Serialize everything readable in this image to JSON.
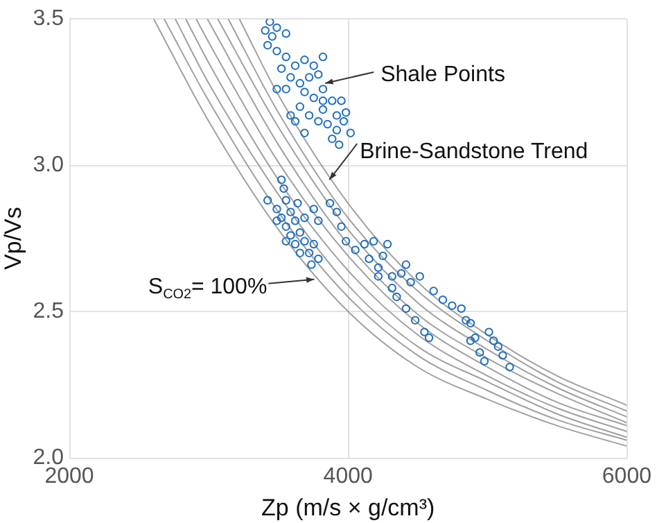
{
  "chart_data": {
    "type": "scatter",
    "xlabel": "Zp (m/s × g/cm³)",
    "ylabel": "Vp/Vs",
    "xlim": [
      2000,
      6000
    ],
    "xticks": [
      2000,
      4000,
      6000
    ],
    "ylim": [
      2.0,
      3.5
    ],
    "yticks": [
      {
        "value": 2.0,
        "label": "2.0"
      },
      {
        "value": 2.5,
        "label": "2.5"
      },
      {
        "value": 3.0,
        "label": "3.0"
      },
      {
        "value": 3.5,
        "label": "3.5"
      }
    ],
    "grid": true,
    "legend": false,
    "marker": "circle",
    "annotations": [
      {
        "text": "Shale Points",
        "x": 3836,
        "y": 3.28
      },
      {
        "text": "Brine-Sandstone Trend",
        "x": 3866,
        "y": 2.95
      },
      {
        "text": "S$_{CO2}$= 100%",
        "x": 3757,
        "y": 2.61
      }
    ],
    "series": [
      {
        "type": "line",
        "marker": "none",
        "color": "#a0a0a0",
        "x": [
          2605,
          3000,
          3500,
          4000,
          4500,
          5000,
          5500,
          6000
        ],
        "values": [
          3.5,
          3.15,
          2.78,
          2.5,
          2.31,
          2.2,
          2.11,
          2.04
        ]
      },
      {
        "type": "line",
        "marker": "none",
        "color": "#a0a0a0",
        "x": [
          2680,
          3000,
          3500,
          4000,
          4500,
          5000,
          5500,
          6000
        ],
        "values": [
          3.5,
          3.22,
          2.84,
          2.55,
          2.35,
          2.23,
          2.13,
          2.06
        ]
      },
      {
        "type": "line",
        "marker": "none",
        "color": "#a0a0a0",
        "x": [
          2760,
          3000,
          3500,
          4000,
          4500,
          5000,
          5500,
          6000
        ],
        "values": [
          3.5,
          3.28,
          2.9,
          2.59,
          2.38,
          2.26,
          2.15,
          2.07
        ]
      },
      {
        "type": "line",
        "marker": "none",
        "color": "#a0a0a0",
        "x": [
          2835,
          3000,
          3500,
          4000,
          4500,
          5000,
          5500,
          6000
        ],
        "values": [
          3.5,
          3.35,
          2.95,
          2.64,
          2.42,
          2.28,
          2.17,
          2.09
        ]
      },
      {
        "type": "line",
        "marker": "none",
        "color": "#a0a0a0",
        "x": [
          2910,
          3000,
          3500,
          4000,
          4500,
          5000,
          5500,
          6000
        ],
        "values": [
          3.5,
          3.42,
          3.01,
          2.69,
          2.46,
          2.31,
          2.19,
          2.11
        ]
      },
      {
        "type": "line",
        "marker": "none",
        "color": "#a0a0a0",
        "x": [
          2990,
          3500,
          4000,
          4500,
          5000,
          5500,
          6000
        ],
        "values": [
          3.5,
          3.07,
          2.73,
          2.49,
          2.34,
          2.22,
          2.12
        ]
      },
      {
        "type": "line",
        "marker": "none",
        "color": "#a0a0a0",
        "x": [
          3065,
          3500,
          4000,
          4500,
          5000,
          5500,
          6000
        ],
        "values": [
          3.5,
          3.13,
          2.78,
          2.53,
          2.37,
          2.24,
          2.14
        ]
      },
      {
        "type": "line",
        "marker": "none",
        "color": "#a0a0a0",
        "x": [
          3140,
          3500,
          4000,
          4500,
          5000,
          5500,
          6000
        ],
        "values": [
          3.5,
          3.18,
          2.82,
          2.57,
          2.4,
          2.26,
          2.16
        ]
      },
      {
        "type": "line",
        "marker": "none",
        "color": "#a0a0a0",
        "x": [
          3220,
          3500,
          4000,
          4500,
          5000,
          5500,
          6000
        ],
        "values": [
          3.5,
          3.24,
          2.87,
          2.6,
          2.42,
          2.28,
          2.18
        ]
      },
      {
        "type": "scatter",
        "color": "#1f6fbf",
        "x": [
          3439,
          3406,
          3456,
          3489,
          3555,
          3423,
          3489,
          3555,
          3621,
          3688,
          3754,
          3522,
          3588,
          3655,
          3721,
          3787,
          3820,
          3688,
          3754,
          3820,
          3886,
          3952,
          3555,
          3655,
          3820,
          3919,
          3985,
          3721,
          3787,
          3853,
          3919,
          4018,
          3621,
          3688,
          3886,
          3936,
          3820,
          3489,
          3588,
          3969,
          3423,
          3489,
          3522,
          3539,
          3555,
          3588,
          3522,
          3555,
          3621,
          3688,
          3754,
          3787,
          3655,
          3588,
          3688,
          3621,
          3754,
          3721,
          3787,
          3737,
          3655,
          3555,
          3489,
          3638,
          3870,
          3919,
          3952,
          3985,
          4052,
          4118,
          4184,
          4151,
          4250,
          4283,
          4217,
          4316,
          4382,
          4416,
          4349,
          4416,
          4482,
          4548,
          4581,
          4449,
          4515,
          4614,
          4680,
          4747,
          4813,
          4846,
          4879,
          4912,
          4945,
          4978,
          5011,
          5044,
          5077,
          5110,
          5160,
          4879,
          4316,
          4217
        ],
        "values": [
          3.49,
          3.46,
          3.44,
          3.47,
          3.45,
          3.41,
          3.39,
          3.37,
          3.34,
          3.36,
          3.34,
          3.33,
          3.3,
          3.28,
          3.3,
          3.31,
          3.26,
          3.25,
          3.23,
          3.22,
          3.22,
          3.22,
          3.26,
          3.2,
          3.19,
          3.17,
          3.18,
          3.17,
          3.15,
          3.14,
          3.12,
          3.11,
          3.15,
          3.11,
          3.09,
          3.07,
          3.37,
          3.26,
          3.17,
          3.15,
          2.88,
          2.85,
          2.95,
          2.92,
          2.88,
          2.84,
          2.82,
          2.79,
          2.81,
          2.82,
          2.85,
          2.81,
          2.77,
          2.76,
          2.74,
          2.73,
          2.73,
          2.7,
          2.68,
          2.66,
          2.7,
          2.74,
          2.81,
          2.87,
          2.87,
          2.84,
          2.79,
          2.74,
          2.71,
          2.73,
          2.74,
          2.68,
          2.69,
          2.73,
          2.65,
          2.62,
          2.63,
          2.66,
          2.55,
          2.51,
          2.47,
          2.43,
          2.41,
          2.6,
          2.62,
          2.57,
          2.54,
          2.52,
          2.51,
          2.47,
          2.46,
          2.41,
          2.36,
          2.33,
          2.43,
          2.4,
          2.38,
          2.35,
          2.31,
          2.4,
          2.58,
          2.62
        ]
      }
    ]
  }
}
